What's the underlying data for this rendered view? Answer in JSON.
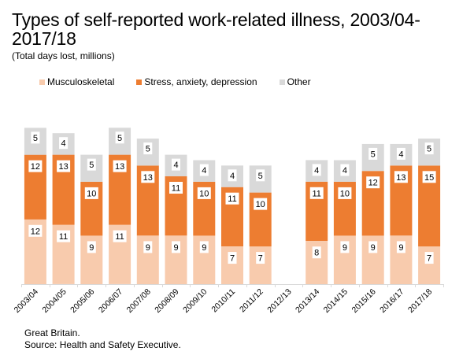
{
  "chart_data": {
    "type": "stacked-bar",
    "title": "Types of self-reported work-related illness, 2003/04-2017/18",
    "subtitle": "(Total days lost, millions)",
    "xlabel": "",
    "ylabel": "",
    "ylim": [
      0,
      29
    ],
    "grid": false,
    "legend_position": "top",
    "categories": [
      "2003/04",
      "2004/05",
      "2005/06",
      "2006/07",
      "2007/08",
      "2008/09",
      "2009/10",
      "2010/11",
      "2011/12",
      "2012/13",
      "2013/14",
      "2014/15",
      "2015/16",
      "2016/17",
      "2017/18"
    ],
    "series": [
      {
        "name": "Musculoskeletal",
        "color": "#f8cbad",
        "values": [
          12,
          11,
          9,
          11,
          9,
          9,
          9,
          7,
          7,
          null,
          8,
          9,
          9,
          9,
          7
        ]
      },
      {
        "name": "Stress, anxiety, depression",
        "color": "#ed7d31",
        "values": [
          12,
          13,
          10,
          13,
          13,
          11,
          10,
          11,
          10,
          null,
          11,
          10,
          12,
          13,
          15
        ]
      },
      {
        "name": "Other",
        "color": "#d9d9d9",
        "values": [
          5,
          4,
          5,
          5,
          5,
          4,
          4,
          4,
          5,
          null,
          4,
          4,
          5,
          4,
          5
        ]
      }
    ],
    "data_labels": true
  },
  "title_line1": "Types of self-reported work-related illness, 2003/04-",
  "title_line2": "2017/18",
  "footer": {
    "line1": "Great Britain.",
    "line2": "Source: Health and Safety Executive."
  }
}
